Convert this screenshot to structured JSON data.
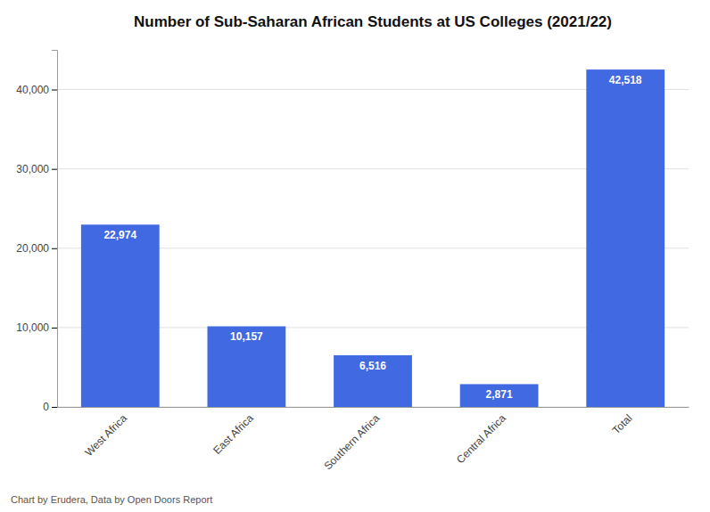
{
  "chart_data": {
    "type": "bar",
    "title": "Number of Sub-Saharan African Students at US Colleges (2021/22)",
    "categories": [
      "West Africa",
      "East Africa",
      "Southern Africa",
      "Central Africa",
      "Total"
    ],
    "values": [
      22974,
      10157,
      6516,
      2871,
      42518
    ],
    "value_labels": [
      "22,974",
      "10,157",
      "6,516",
      "2,871",
      "42,518"
    ],
    "data_labels": true,
    "color": "#4169e1",
    "ylim": [
      0,
      45000
    ],
    "yticks": [
      0,
      {
        "value": 10000,
        "label": "10,000"
      },
      {
        "value": 20000,
        "label": "20,000"
      },
      {
        "value": 30000,
        "label": "30,000"
      },
      {
        "value": 40000,
        "label": "40,000"
      }
    ],
    "grid": true,
    "annotations": [
      "Chart by Erudera, Data by Open Doors Report"
    ]
  }
}
